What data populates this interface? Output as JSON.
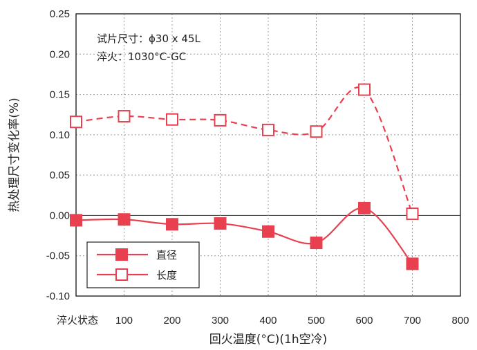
{
  "chart_data": {
    "type": "line",
    "xlabel": "回火温度(°C)(1h空冷)",
    "ylabel": "热处理尺寸变化率(%)",
    "x_ticks": [
      "淬火状态",
      "100",
      "200",
      "300",
      "400",
      "500",
      "600",
      "700",
      "800"
    ],
    "x": [
      0,
      100,
      200,
      300,
      400,
      500,
      600,
      700
    ],
    "xlim": [
      0,
      800
    ],
    "y_ticks": [
      "0.25",
      "0.20",
      "0.15",
      "0.10",
      "0.05",
      "0.00",
      "-0.05",
      "-0.10"
    ],
    "ylim": [
      -0.1,
      0.25
    ],
    "grid": true,
    "annotations": [
      "试片尺寸：ϕ30 x 45L",
      "淬火：1030°C-GC"
    ],
    "legend_position": "bottom-left",
    "series": [
      {
        "name": "直径",
        "marker": "filled-square",
        "line": "solid",
        "color": "#e8404f",
        "values": [
          -0.006,
          -0.005,
          -0.011,
          -0.01,
          -0.02,
          -0.034,
          0.009,
          -0.06
        ]
      },
      {
        "name": "长度",
        "marker": "open-square",
        "line": "dashed",
        "color": "#e8404f",
        "values": [
          0.116,
          0.123,
          0.119,
          0.118,
          0.106,
          0.104,
          0.156,
          0.002
        ]
      }
    ]
  }
}
